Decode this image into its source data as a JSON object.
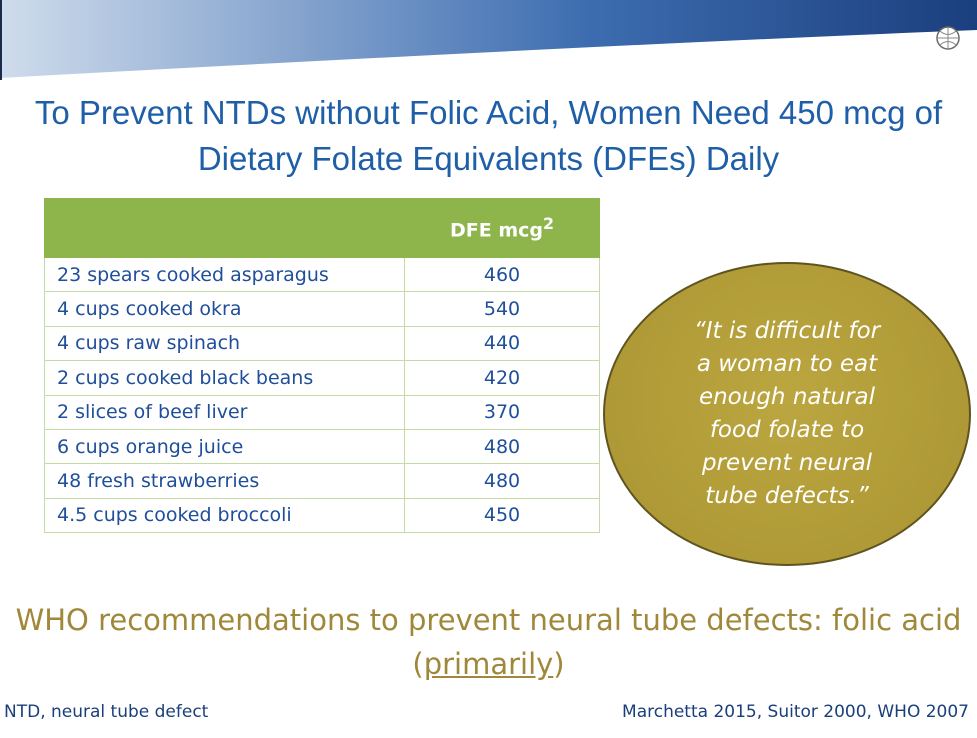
{
  "title": "To Prevent NTDs without Folic Acid, Women Need 450 mcg of Dietary Folate Equivalents (DFEs) Daily",
  "table": {
    "header": {
      "label": "DFE mcg",
      "superscript": "2"
    },
    "rows": [
      [
        "23 spears cooked asparagus",
        460
      ],
      [
        "4 cups cooked okra",
        540
      ],
      [
        "4 cups raw spinach",
        440
      ],
      [
        "2 cups cooked black beans",
        420
      ],
      [
        "2 slices of beef liver",
        370
      ],
      [
        "6 cups orange juice",
        480
      ],
      [
        "48 fresh strawberries",
        480
      ],
      [
        "4.5 cups cooked broccoli",
        450
      ]
    ]
  },
  "quote": "“It is difficult for a woman to eat enough natural food folate to prevent neural tube defects.”",
  "recommendation": {
    "before": "WHO recommendations to prevent neural tube defects:  folic acid (",
    "underlined": "primarily",
    "after": ")"
  },
  "footer": {
    "left": "NTD, neural tube defect",
    "right": "Marchetta 2015, Suitor 2000, WHO 2007"
  }
}
